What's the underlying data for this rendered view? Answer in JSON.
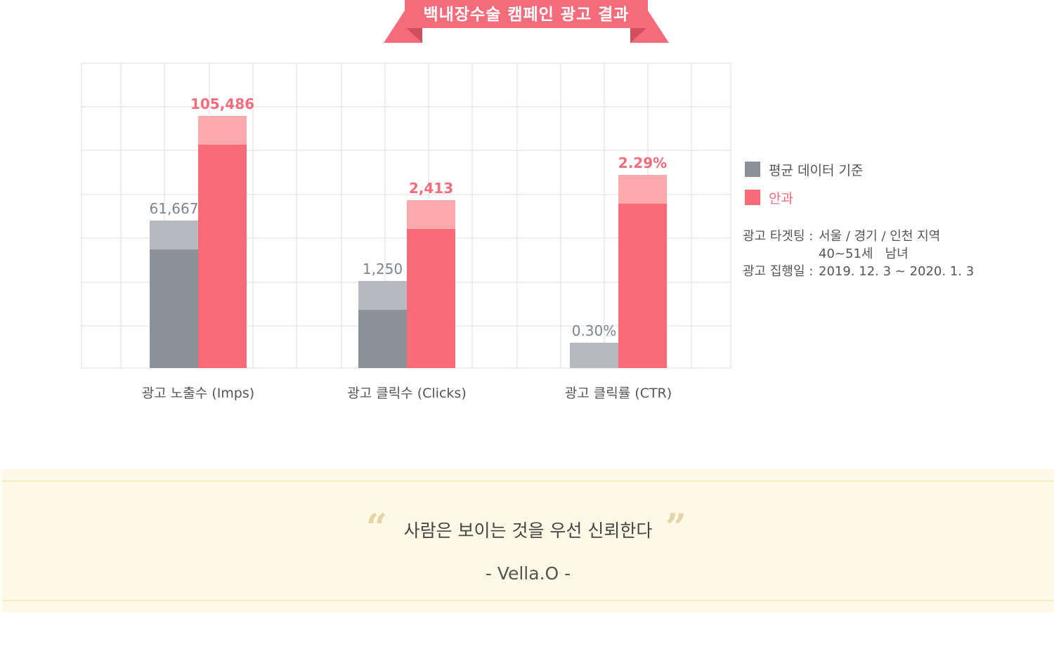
{
  "title": "백내장수술 캠페인 광고 결과",
  "colors": {
    "ribbon": "#f36c7b",
    "ribbon_dark": "#e25567",
    "baseline_bar": "#8a9199",
    "baseline_cap": "#b6b9bd",
    "ours_bar": "#f86b77",
    "ours_cap": "#fda9ad",
    "grid": "#e8e8e8",
    "baseline_label": "#7b8590",
    "ours_label": "#f36c7b"
  },
  "chart_data": {
    "type": "bar",
    "categories": [
      "광고 노출수 (Imps)",
      "광고 클릭수 (Clicks)",
      "광고 클릭률 (CTR)"
    ],
    "series": [
      {
        "name": "평균 데이터 기준",
        "values": [
          61667,
          1250,
          0.3
        ],
        "labels": [
          "61,667",
          "1,250",
          "0.30%"
        ]
      },
      {
        "name": "안과",
        "values": [
          105486,
          2413,
          2.29
        ],
        "labels": [
          "105,486",
          "2,413",
          "2.29%"
        ]
      }
    ],
    "legend_position": "right",
    "grid": true
  },
  "info": [
    {
      "key": "광고 타겟팅 :",
      "value": "서울 / 경기 / 인천 지역"
    },
    {
      "key": "",
      "value": "40~51세   남녀"
    },
    {
      "key": "광고 집행일 :",
      "value": "2019. 12. 3 ~ 2020. 1. 3"
    }
  ],
  "quote": {
    "open_mark": "“",
    "close_mark": "”",
    "text": "사람은 보이는 것을 우선 신뢰한다",
    "author": "- Vella.O -"
  }
}
